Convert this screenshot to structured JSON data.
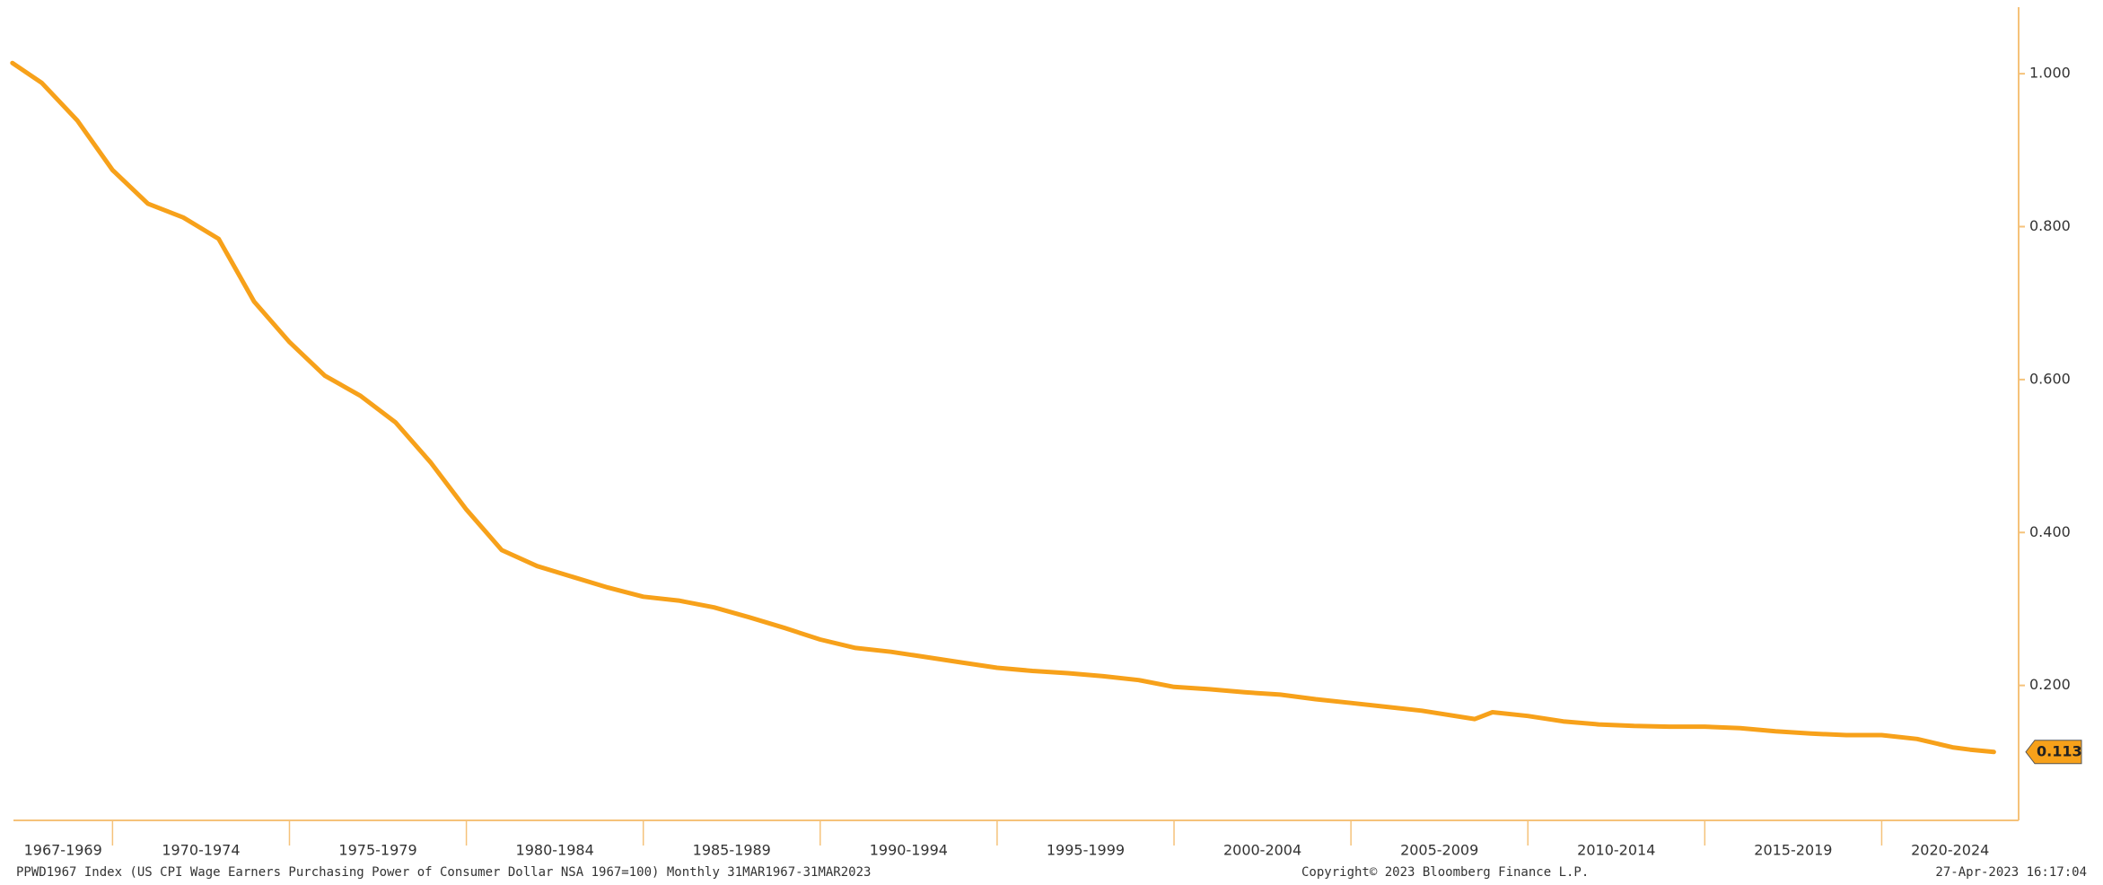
{
  "chart_data": {
    "type": "line",
    "x": [
      1967.17,
      1968,
      1969,
      1970,
      1971,
      1972,
      1973,
      1974,
      1975,
      1976,
      1977,
      1978,
      1979,
      1980,
      1981,
      1982,
      1983,
      1984,
      1985,
      1986,
      1987,
      1988,
      1989,
      1990,
      1991,
      1992,
      1993,
      1994,
      1995,
      1996,
      1997,
      1998,
      1999,
      2000,
      2001,
      2002,
      2003,
      2004,
      2005,
      2006,
      2007,
      2008.5,
      2009,
      2010,
      2011,
      2012,
      2013,
      2014,
      2015,
      2016,
      2017,
      2018,
      2019,
      2020,
      2021,
      2022,
      2022.5,
      2023.17
    ],
    "series": [
      {
        "color": "#f7a11a",
        "values": [
          1.014,
          0.988,
          0.939,
          0.874,
          0.83,
          0.812,
          0.784,
          0.702,
          0.649,
          0.605,
          0.579,
          0.544,
          0.491,
          0.43,
          0.377,
          0.356,
          0.342,
          0.328,
          0.316,
          0.311,
          0.302,
          0.289,
          0.275,
          0.26,
          0.249,
          0.244,
          0.237,
          0.23,
          0.223,
          0.219,
          0.216,
          0.212,
          0.207,
          0.198,
          0.195,
          0.191,
          0.188,
          0.182,
          0.177,
          0.172,
          0.167,
          0.156,
          0.165,
          0.16,
          0.153,
          0.149,
          0.147,
          0.146,
          0.146,
          0.144,
          0.14,
          0.137,
          0.135,
          0.135,
          0.13,
          0.119,
          0.116,
          0.113
        ]
      }
    ],
    "xlim": [
      1967.2,
      2023.87
    ],
    "ylim": [
      0.0235,
      1.087
    ],
    "yticks": [
      {
        "value": 0.2,
        "label": "0.200"
      },
      {
        "value": 0.4,
        "label": "0.400"
      },
      {
        "value": 0.6,
        "label": "0.600"
      },
      {
        "value": 0.8,
        "label": "0.800"
      },
      {
        "value": 1.0,
        "label": "1.000"
      }
    ],
    "xbands": [
      {
        "start": 1967,
        "end": 1970,
        "label": "1967-1969"
      },
      {
        "start": 1970,
        "end": 1975,
        "label": "1970-1974"
      },
      {
        "start": 1975,
        "end": 1980,
        "label": "1975-1979"
      },
      {
        "start": 1980,
        "end": 1985,
        "label": "1980-1984"
      },
      {
        "start": 1985,
        "end": 1990,
        "label": "1985-1989"
      },
      {
        "start": 1990,
        "end": 1995,
        "label": "1990-1994"
      },
      {
        "start": 1995,
        "end": 2000,
        "label": "1995-1999"
      },
      {
        "start": 2000,
        "end": 2005,
        "label": "2000-2004"
      },
      {
        "start": 2005,
        "end": 2010,
        "label": "2005-2009"
      },
      {
        "start": 2010,
        "end": 2015,
        "label": "2010-2014"
      },
      {
        "start": 2015,
        "end": 2020,
        "label": "2015-2019"
      },
      {
        "start": 2020,
        "end": 2025,
        "label": "2020-2024"
      }
    ],
    "axis_color": "#f5c27a",
    "footer_left": "PPWD1967 Index (US CPI Wage Earners Purchasing Power of Consumer Dollar NSA 1967=100)  Monthly 31MAR1967-31MAR2023",
    "footer_center": "Copyright© 2023 Bloomberg Finance L.P.",
    "footer_right": "27-Apr-2023 16:17:04"
  }
}
